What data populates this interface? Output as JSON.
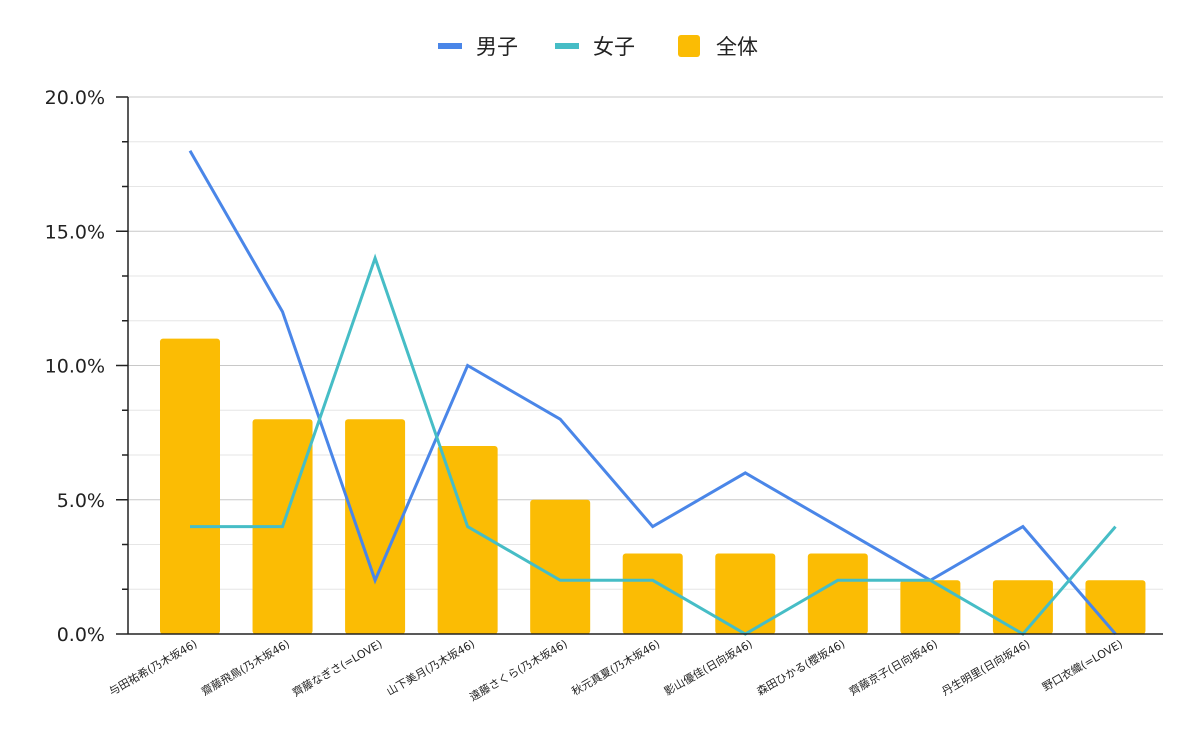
{
  "chart_data": {
    "type": "bar",
    "categories": [
      "与田祐希(乃木坂46)",
      "齋藤飛鳥(乃木坂46)",
      "齊藤なぎさ(=LOVE)",
      "山下美月(乃木坂46)",
      "遠藤さくら(乃木坂46)",
      "秋元真夏(乃木坂46)",
      "影山優佳(日向坂46)",
      "森田ひかる(櫻坂46)",
      "齊藤京子(日向坂46)",
      "丹生明里(日向坂46)",
      "野口衣織(=LOVE)"
    ],
    "series": [
      {
        "name": "全体",
        "type": "bar",
        "color": "#fbbc04",
        "values": [
          11,
          8,
          8,
          7,
          5,
          3,
          3,
          3,
          2,
          2,
          2
        ]
      },
      {
        "name": "男子",
        "type": "line",
        "color": "#4a86e8",
        "values": [
          18,
          12,
          2,
          10,
          8,
          4,
          6,
          4,
          2,
          4,
          0
        ]
      },
      {
        "name": "女子",
        "type": "line",
        "color": "#46bdc6",
        "values": [
          4,
          4,
          14,
          4,
          2,
          2,
          0,
          2,
          2,
          0,
          4
        ]
      }
    ],
    "legend_order": [
      "男子",
      "女子",
      "全体"
    ],
    "legend_position": "top",
    "y_tick_labels": [
      "0.0%",
      "5.0%",
      "10.0%",
      "15.0%",
      "20.0%"
    ],
    "ylim": [
      0,
      20
    ],
    "y_unit": "%",
    "grid": true
  }
}
